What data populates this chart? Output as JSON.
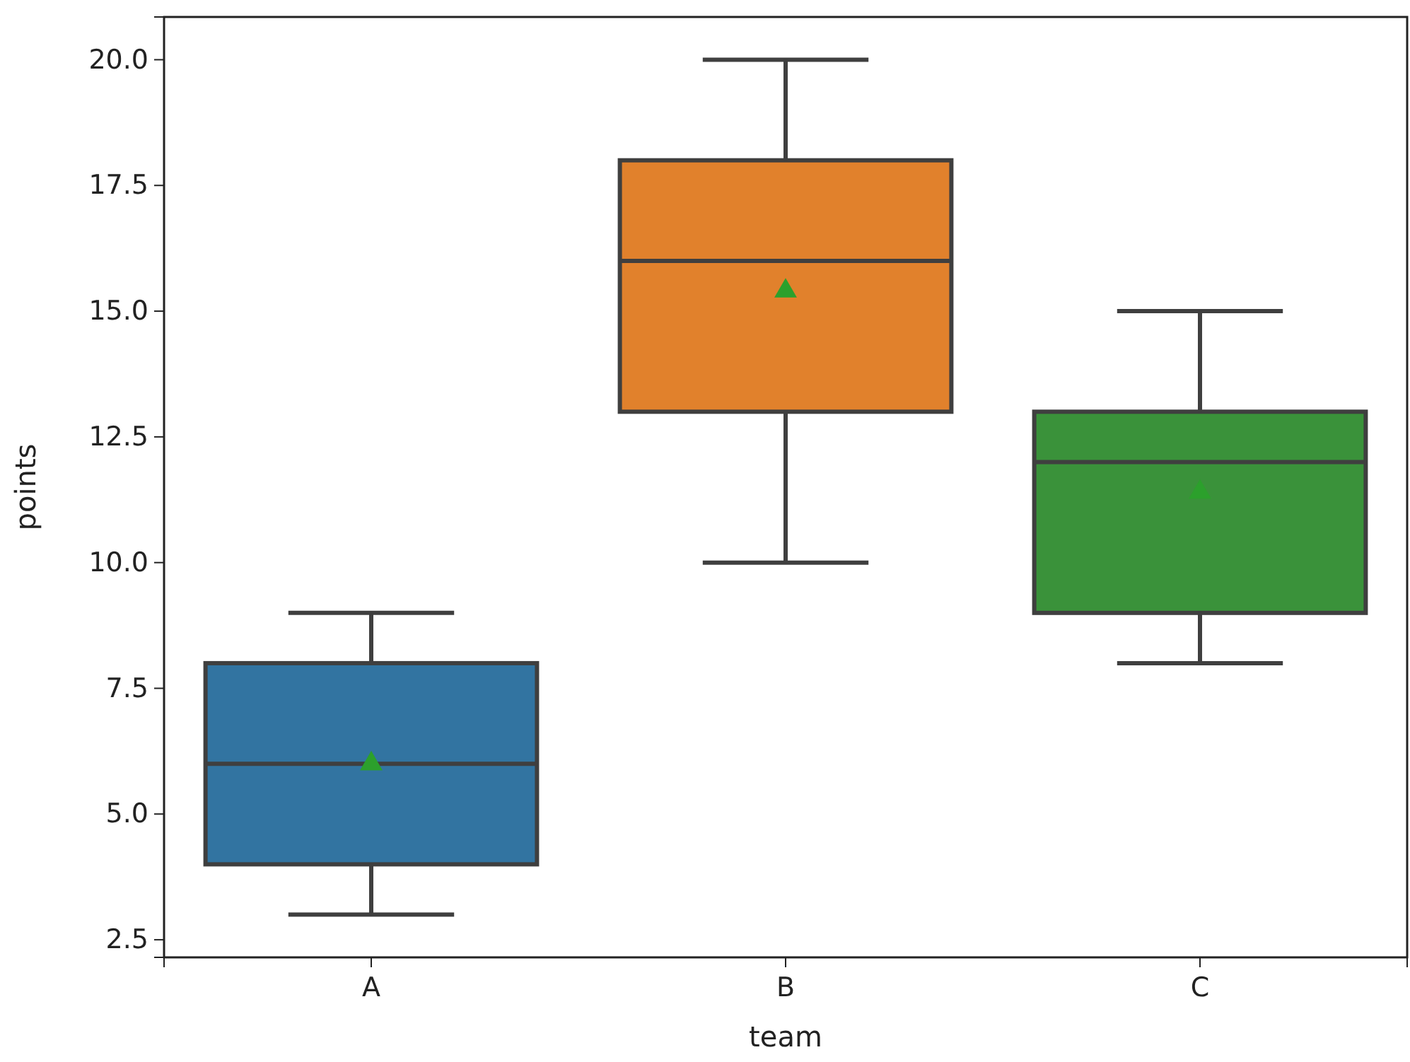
{
  "chart_data": {
    "type": "box",
    "xlabel": "team",
    "ylabel": "points",
    "categories": [
      "A",
      "B",
      "C"
    ],
    "colors": [
      "#3274a1",
      "#e1812c",
      "#3a923a"
    ],
    "boxes": [
      {
        "low": 3,
        "q1": 4,
        "median": 6,
        "q3": 8,
        "high": 9,
        "mean": 6
      },
      {
        "low": 10,
        "q1": 13,
        "median": 16,
        "q3": 18,
        "high": 20,
        "mean": 15.4
      },
      {
        "low": 8,
        "q1": 9,
        "median": 12,
        "q3": 13,
        "high": 15,
        "mean": 11.4
      }
    ],
    "ylim": [
      2.15,
      20.85
    ],
    "yticks": [
      {
        "value": 2.5,
        "label": "2.5"
      },
      {
        "value": 5,
        "label": "5.0"
      },
      {
        "value": 7.5,
        "label": "7.5"
      },
      {
        "value": 10,
        "label": "10.0"
      },
      {
        "value": 12.5,
        "label": "12.5"
      },
      {
        "value": 15,
        "label": "15.0"
      },
      {
        "value": 17.5,
        "label": "17.5"
      },
      {
        "value": 20,
        "label": "20.0"
      }
    ]
  }
}
